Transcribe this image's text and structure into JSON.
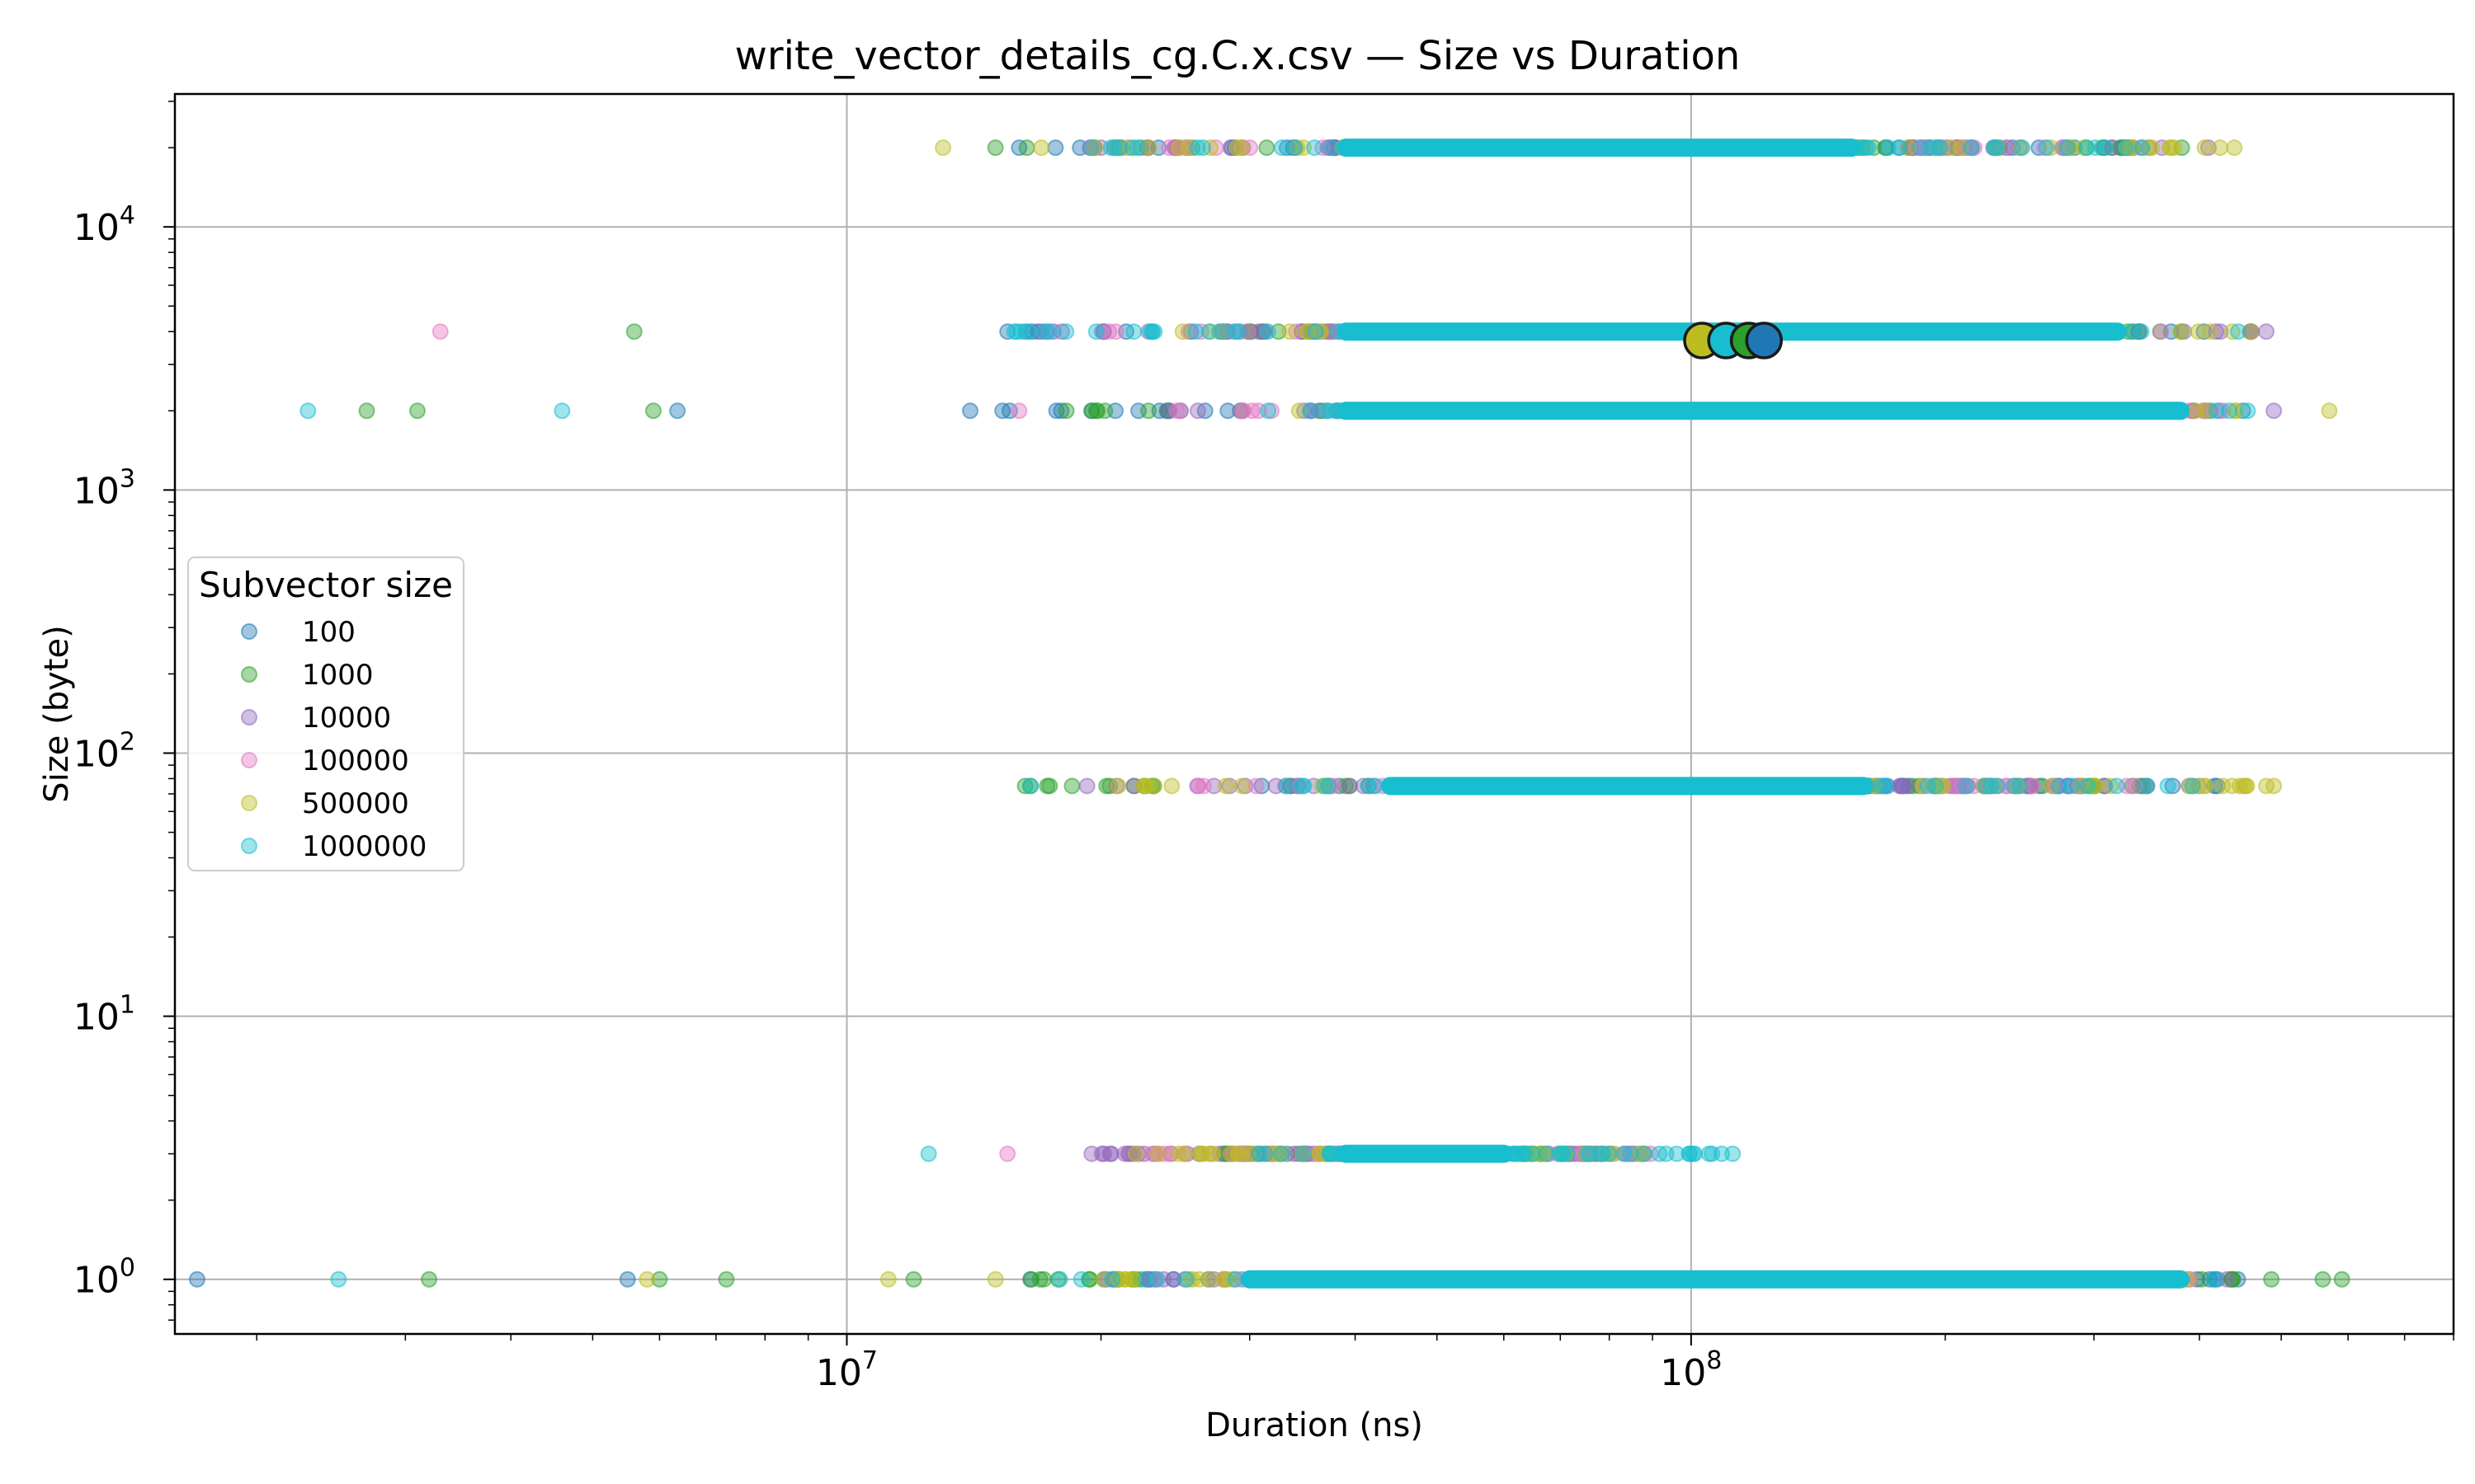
{
  "chart_data": {
    "type": "scatter",
    "title": "write_vector_details_cg.C.x.csv — Size vs Duration",
    "xlabel": "Duration (ns)",
    "ylabel": "Size (byte)",
    "xscale": "log",
    "yscale": "log",
    "xlim": [
      1600000.0,
      800000000.0
    ],
    "ylim": [
      0.62,
      32000
    ],
    "grid": true,
    "x_ticks": [
      {
        "value": 10000000.0,
        "base": "10",
        "exp": "7"
      },
      {
        "value": 100000000.0,
        "base": "10",
        "exp": "8"
      }
    ],
    "y_ticks": [
      {
        "value": 1,
        "base": "10",
        "exp": "0"
      },
      {
        "value": 10,
        "base": "10",
        "exp": "1"
      },
      {
        "value": 100,
        "base": "10",
        "exp": "2"
      },
      {
        "value": 1000,
        "base": "10",
        "exp": "3"
      },
      {
        "value": 10000,
        "base": "10",
        "exp": "4"
      }
    ],
    "legend": {
      "title": "Subvector size",
      "placement": "center-left"
    },
    "series": [
      {
        "name": "100",
        "color": "#1f77b4",
        "points": [
          [
            1700000.0,
            1
          ],
          [
            5500000.0,
            1
          ],
          [
            6300000.0,
            2000
          ],
          [
            14000000.0,
            2000
          ],
          [
            15500000.0,
            4000
          ],
          [
            16000000.0,
            20000
          ],
          [
            31000000.0,
            75
          ],
          [
            420000000.0,
            75
          ],
          [
            460000000.0,
            4000
          ],
          [
            330000000.0,
            20000
          ],
          [
            420000000.0,
            1
          ],
          [
            16500000.0,
            1
          ]
        ],
        "ranges": [
          [
            16000000.0,
            450000000.0,
            1
          ],
          [
            32000000.0,
            440000000.0,
            75
          ],
          [
            15500000.0,
            470000000.0,
            4000
          ],
          [
            14000000.0,
            460000000.0,
            2000
          ],
          [
            17000000.0,
            360000000.0,
            20000
          ]
        ]
      },
      {
        "name": "1000",
        "color": "#2ca02c",
        "points": [
          [
            3200000.0,
            1
          ],
          [
            6000000.0,
            1
          ],
          [
            7200000.0,
            1
          ],
          [
            12000000.0,
            1
          ],
          [
            560000000.0,
            1
          ],
          [
            590000000.0,
            1
          ],
          [
            2700000.0,
            2000
          ],
          [
            3100000.0,
            2000
          ],
          [
            5900000.0,
            2000
          ],
          [
            5600000.0,
            4000
          ],
          [
            15000000.0,
            20000
          ],
          [
            16500000.0,
            75
          ]
        ],
        "ranges": [
          [
            16000000.0,
            550000000.0,
            1
          ],
          [
            16000000.0,
            400000000.0,
            75
          ],
          [
            28000000.0,
            400000000.0,
            4000
          ],
          [
            18000000.0,
            430000000.0,
            2000
          ],
          [
            15000000.0,
            390000000.0,
            20000
          ],
          [
            27000000.0,
            80000000.0,
            3
          ]
        ]
      },
      {
        "name": "10000",
        "color": "#9467bd",
        "points": [
          [
            19500000.0,
            3
          ],
          [
            20000000.0,
            20000
          ],
          [
            17000000.0,
            4000
          ],
          [
            490000000.0,
            2000
          ],
          [
            480000000.0,
            4000
          ],
          [
            410000000.0,
            20000
          ]
        ],
        "ranges": [
          [
            19000000.0,
            450000000.0,
            1
          ],
          [
            19000000.0,
            400000000.0,
            75
          ],
          [
            17000000.0,
            480000000.0,
            4000
          ],
          [
            22000000.0,
            490000000.0,
            2000
          ],
          [
            18000000.0,
            400000000.0,
            20000
          ],
          [
            19500000.0,
            90000000.0,
            3
          ]
        ]
      },
      {
        "name": "100000",
        "color": "#e377c2",
        "points": [
          [
            3300000.0,
            4000
          ],
          [
            15500000.0,
            3
          ],
          [
            16000000.0,
            2000
          ],
          [
            24500000.0,
            20000
          ],
          [
            23000000.0,
            3
          ]
        ],
        "ranges": [
          [
            23000000.0,
            400000000.0,
            1
          ],
          [
            25000000.0,
            360000000.0,
            75
          ],
          [
            20000000.0,
            420000000.0,
            4000
          ],
          [
            22000000.0,
            440000000.0,
            2000
          ],
          [
            18000000.0,
            290000000.0,
            20000
          ],
          [
            23000000.0,
            90000000.0,
            3
          ]
        ]
      },
      {
        "name": "500000",
        "color": "#bcbd22",
        "points": [
          [
            11200000.0,
            1
          ],
          [
            15000000.0,
            1
          ],
          [
            5800000.0,
            1
          ],
          [
            13000000.0,
            20000
          ],
          [
            17000000.0,
            20000
          ],
          [
            440000000.0,
            20000
          ],
          [
            570000000.0,
            2000
          ],
          [
            490000000.0,
            75
          ],
          [
            25000000.0,
            4000
          ],
          [
            22000000.0,
            3
          ]
        ],
        "ranges": [
          [
            19000000.0,
            460000000.0,
            1
          ],
          [
            20000000.0,
            490000000.0,
            75
          ],
          [
            25000000.0,
            460000000.0,
            4000
          ],
          [
            30000000.0,
            470000000.0,
            2000
          ],
          [
            17000000.0,
            430000000.0,
            20000
          ],
          [
            22000000.0,
            90000000.0,
            3
          ]
        ]
      },
      {
        "name": "1000000",
        "color": "#17becf",
        "points": [
          [
            2300000.0,
            2000
          ],
          [
            2500000.0,
            1
          ],
          [
            4600000.0,
            2000
          ],
          [
            12500000.0,
            3
          ],
          [
            15800000.0,
            4000
          ],
          [
            16500000.0,
            75
          ],
          [
            112000000.0,
            3
          ],
          [
            105000000.0,
            3
          ]
        ],
        "ranges": [
          [
            16000000.0,
            420000000.0,
            1
          ],
          [
            30000000.0,
            400000000.0,
            75
          ],
          [
            15800000.0,
            450000000.0,
            4000
          ],
          [
            30000000.0,
            460000000.0,
            2000
          ],
          [
            17000000.0,
            370000000.0,
            20000
          ],
          [
            30000000.0,
            112000000.0,
            3
          ]
        ]
      }
    ],
    "means": [
      {
        "series": "500000",
        "x": 103000000.0,
        "y": 3700,
        "color": "#bcbd22"
      },
      {
        "series": "1000000",
        "x": 110000000.0,
        "y": 3700,
        "color": "#17becf"
      },
      {
        "series": "1000",
        "x": 117000000.0,
        "y": 3700,
        "color": "#2ca02c"
      },
      {
        "series": "100",
        "x": 122000000.0,
        "y": 3700,
        "color": "#1f77b4"
      }
    ],
    "dominant_bands": [
      {
        "series": "1000000",
        "color": "#17becf",
        "y": 20000,
        "x": [
          39000000.0,
          155000000.0
        ]
      },
      {
        "series": "1000000",
        "color": "#17becf",
        "y": 4000,
        "x": [
          39000000.0,
          320000000.0
        ]
      },
      {
        "series": "1000000",
        "color": "#17becf",
        "y": 2000,
        "x": [
          39000000.0,
          380000000.0
        ]
      },
      {
        "series": "1000000",
        "color": "#17becf",
        "y": 75,
        "x": [
          44000000.0,
          160000000.0
        ]
      },
      {
        "series": "1000000",
        "color": "#17becf",
        "y": 3,
        "x": [
          39000000.0,
          60000000.0
        ]
      },
      {
        "series": "1000000",
        "color": "#17becf",
        "y": 1,
        "x": [
          30000000.0,
          380000000.0
        ]
      }
    ]
  }
}
